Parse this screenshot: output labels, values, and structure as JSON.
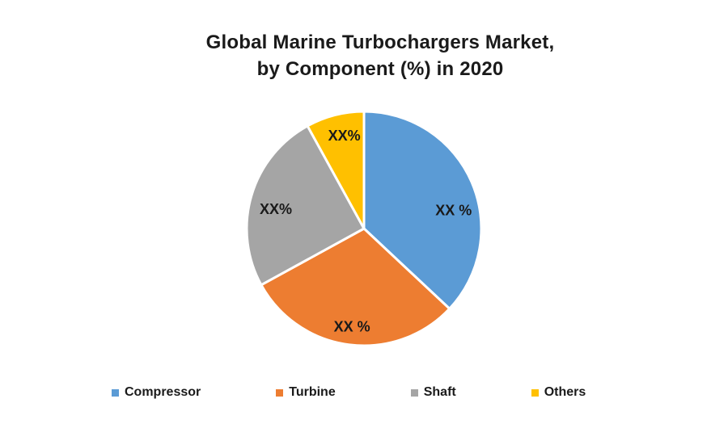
{
  "title": {
    "line1": "Global Marine Turbochargers Market,",
    "line2": "by Component (%) in 2020"
  },
  "chart_data": {
    "type": "pie",
    "title": "Global Marine Turbochargers Market, by Component (%) in 2020",
    "unit": "%",
    "start_angle_deg": 0,
    "direction": "clockwise",
    "legend_position": "bottom",
    "slices": [
      {
        "name": "Compressor",
        "value": 37,
        "label": "XX %",
        "color": "#5B9BD5"
      },
      {
        "name": "Turbine",
        "value": 30,
        "label": "XX %",
        "color": "#ED7D31"
      },
      {
        "name": "Shaft",
        "value": 25,
        "label": "XX%",
        "color": "#A5A5A5"
      },
      {
        "name": "Others",
        "value": 8,
        "label": "XX%",
        "color": "#FFC000"
      }
    ]
  }
}
